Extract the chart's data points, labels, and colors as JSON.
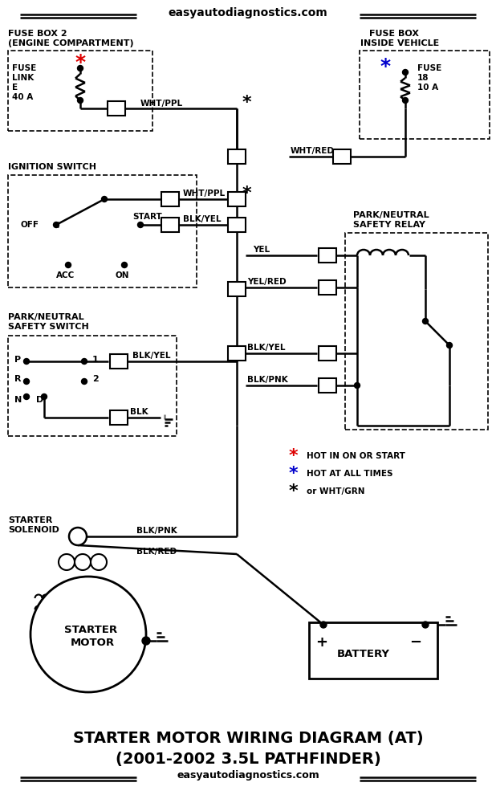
{
  "title_top": "easyautodiagnostics.com",
  "title_bottom_line1": "STARTER MOTOR WIRING DIAGRAM (AT)",
  "title_bottom_line2": "(2001-2002 3.5L PATHFINDER)",
  "title_bottom_url": "easyautodiagnostics.com",
  "bg_color": "#ffffff",
  "wire_color": "#808080",
  "black": "#000000",
  "red": "#dd0000",
  "blue": "#0000cc"
}
